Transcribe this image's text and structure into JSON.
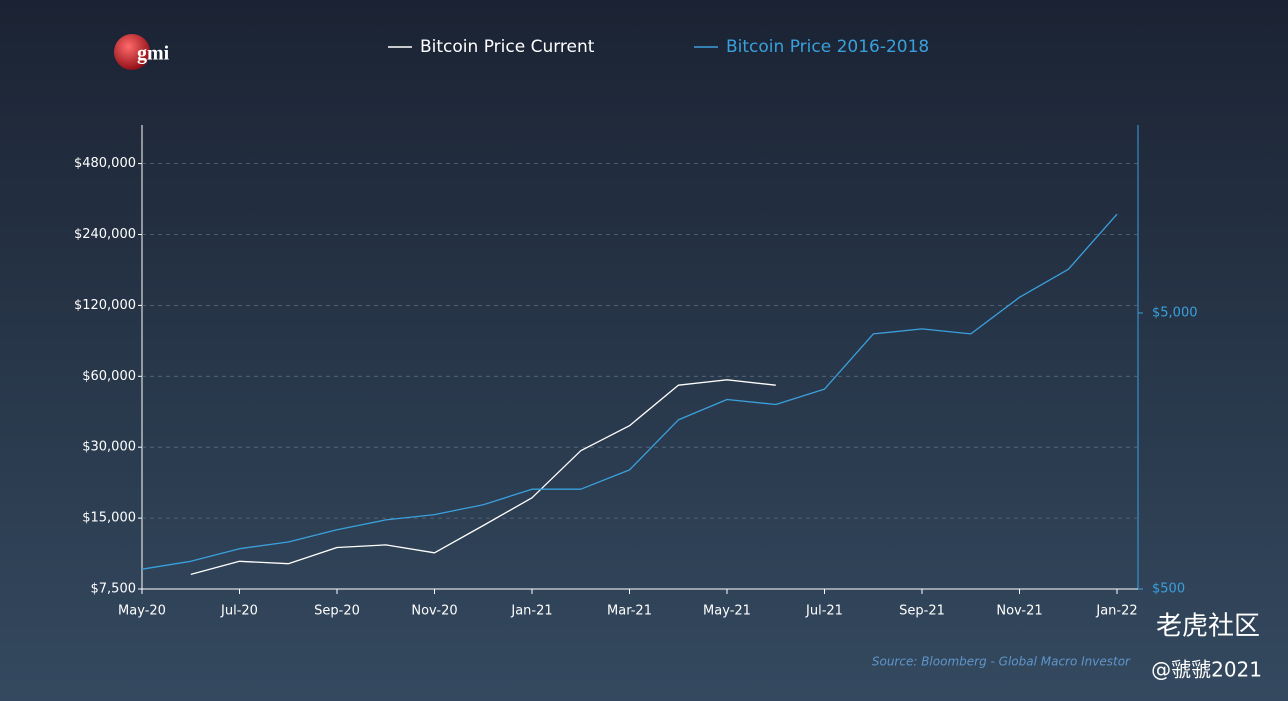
{
  "chart_data": {
    "type": "line",
    "logo": "gmi",
    "source": "Source: Bloomberg - Global Macro Investor",
    "watermark": [
      "老虎社区",
      "@虢虢2021"
    ],
    "x": [
      "2020-05",
      "2020-06",
      "2020-07",
      "2020-08",
      "2020-09",
      "2020-10",
      "2020-11",
      "2020-12",
      "2021-01",
      "2021-02",
      "2021-03",
      "2021-04",
      "2021-05",
      "2021-06",
      "2021-07",
      "2021-08",
      "2021-09",
      "2021-10",
      "2021-11",
      "2021-12",
      "2022-01"
    ],
    "series": [
      {
        "name": "Bitcoin Price Current",
        "color": "#ffffff",
        "axis": "y",
        "values": [
          null,
          8650,
          9830,
          9600,
          11250,
          11540,
          10680,
          13950,
          18300,
          29000,
          37000,
          55000,
          58000,
          55000,
          null,
          null,
          null,
          null,
          null,
          null,
          null
        ]
      },
      {
        "name": "Bitcoin Price 2016-2018",
        "color": "#3aa0dc",
        "axis": "y2",
        "values": [
          590,
          630,
          700,
          740,
          820,
          890,
          930,
          1010,
          1150,
          1150,
          1350,
          2050,
          2430,
          2330,
          2650,
          4200,
          4380,
          4200,
          5700,
          7200,
          11400
        ]
      }
    ],
    "xlim": [
      "2020-05",
      "2022-01"
    ],
    "xticks": [
      {
        "value": "2020-05",
        "label": "May-20"
      },
      {
        "value": "2020-07",
        "label": "Jul-20"
      },
      {
        "value": "2020-09",
        "label": "Sep-20"
      },
      {
        "value": "2020-11",
        "label": "Nov-20"
      },
      {
        "value": "2021-01",
        "label": "Jan-21"
      },
      {
        "value": "2021-03",
        "label": "Mar-21"
      },
      {
        "value": "2021-05",
        "label": "May-21"
      },
      {
        "value": "2021-07",
        "label": "Jul-21"
      },
      {
        "value": "2021-09",
        "label": "Sep-21"
      },
      {
        "value": "2021-11",
        "label": "Nov-21"
      },
      {
        "value": "2022-01",
        "label": "Jan-22"
      }
    ],
    "ylim": [
      7500,
      700000
    ],
    "yscale": "log",
    "yticks": [
      {
        "value": 7500,
        "label": "$7,500"
      },
      {
        "value": 15000,
        "label": "$15,000"
      },
      {
        "value": 30000,
        "label": "$30,000"
      },
      {
        "value": 60000,
        "label": "$60,000"
      },
      {
        "value": 120000,
        "label": "$120,000"
      },
      {
        "value": 240000,
        "label": "$240,000"
      },
      {
        "value": 480000,
        "label": "$480,000"
      }
    ],
    "y2lim": [
      500,
      24000
    ],
    "y2scale": "log",
    "y2ticks": [
      {
        "value": 500,
        "label": "$500"
      },
      {
        "value": 5000,
        "label": "$5,000"
      }
    ],
    "grid": true
  }
}
